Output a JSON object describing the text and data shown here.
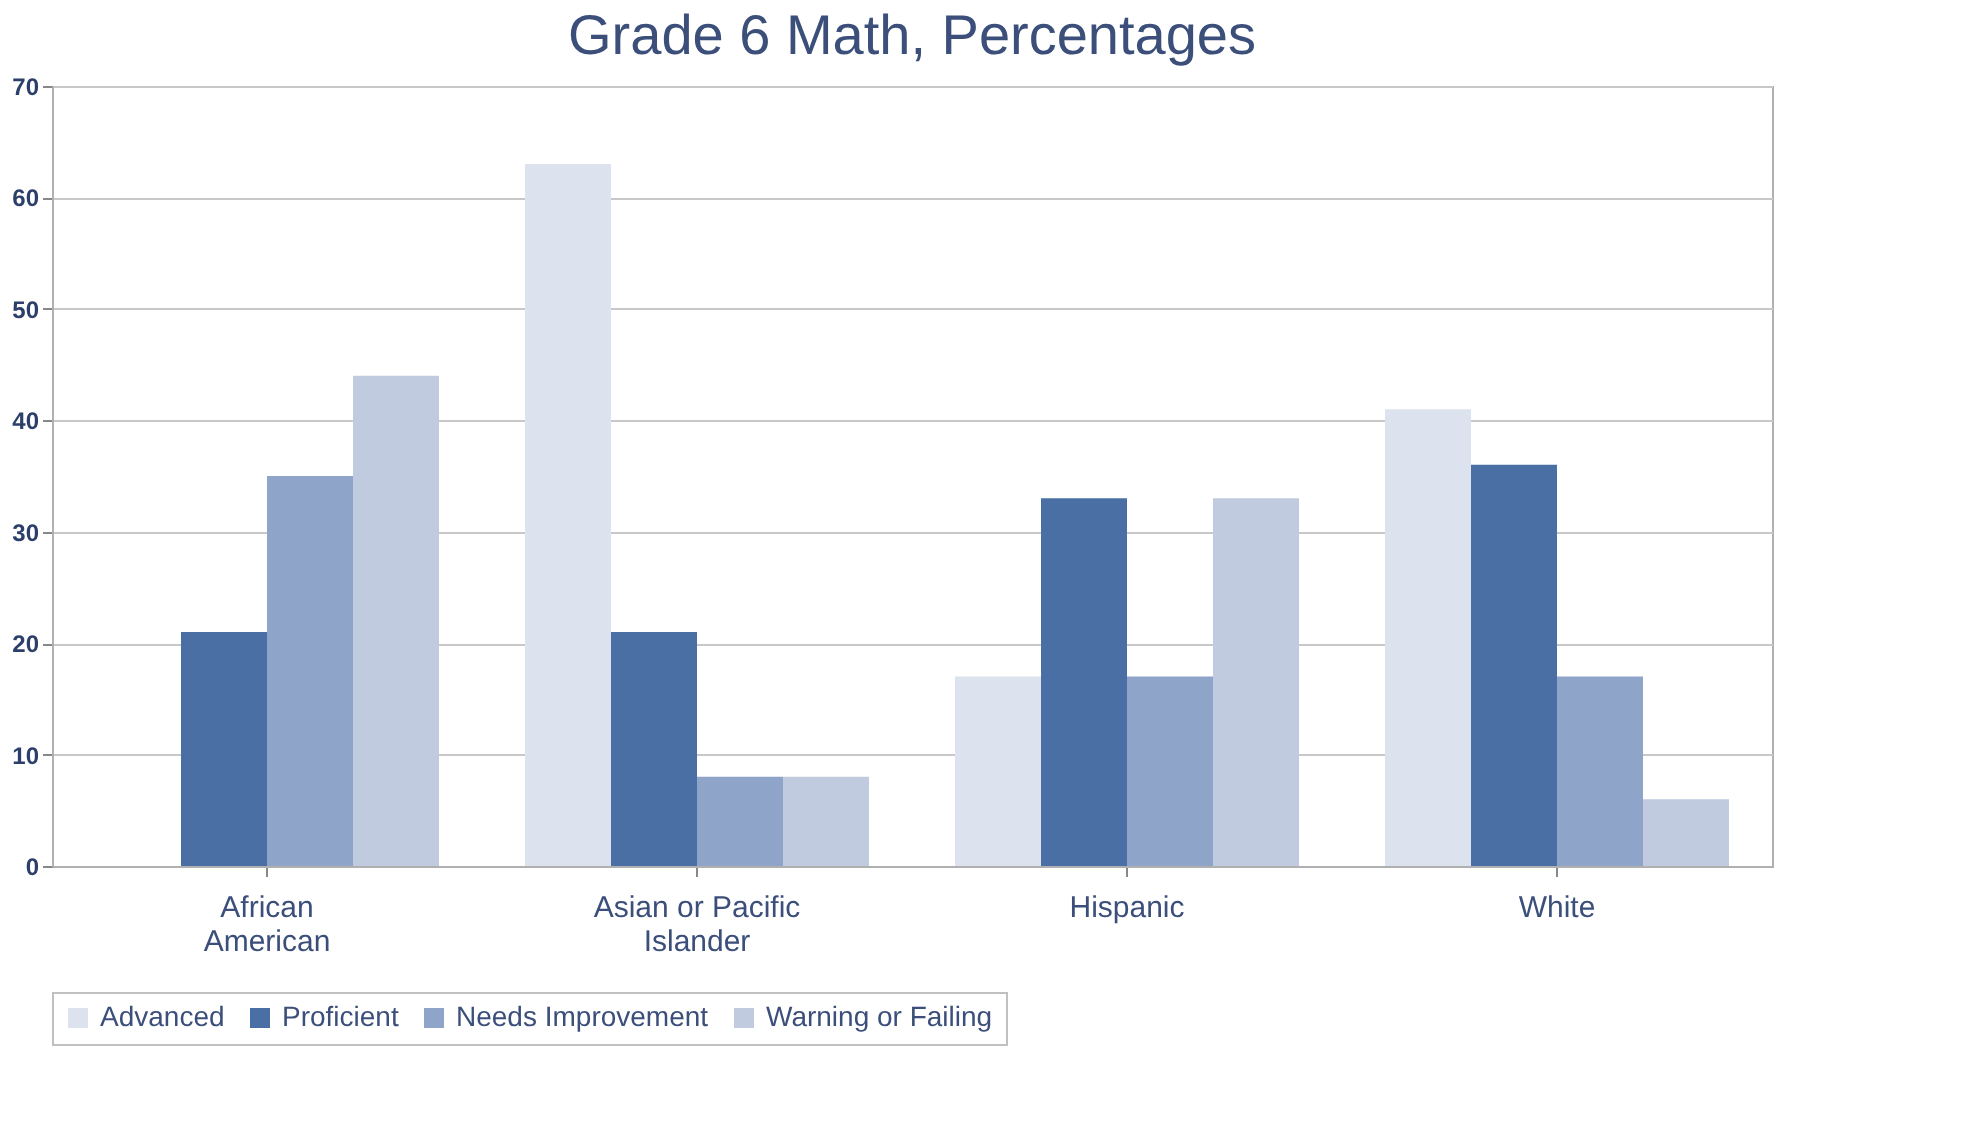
{
  "chart_data": {
    "type": "bar",
    "title": "Grade 6 Math, Percentages",
    "categories": [
      "African\nAmerican",
      "Asian or Pacific\nIslander",
      "Hispanic",
      "White"
    ],
    "series": [
      {
        "name": "Advanced",
        "color": "#dde3ee",
        "values": [
          0,
          63,
          17,
          41
        ]
      },
      {
        "name": "Proficient",
        "color": "#4a6fa5",
        "values": [
          21,
          21,
          33,
          36
        ]
      },
      {
        "name": "Needs Improvement",
        "color": "#8ea4c8",
        "values": [
          35,
          8,
          17,
          17
        ]
      },
      {
        "name": "Warning or Failing",
        "color": "#c0cbe0",
        "values": [
          44,
          8,
          33,
          6
        ]
      }
    ],
    "ylim": [
      0,
      70
    ],
    "yticks": [
      0,
      10,
      20,
      30,
      40,
      50,
      60,
      70
    ],
    "grid": "y",
    "legend": "bottom"
  }
}
